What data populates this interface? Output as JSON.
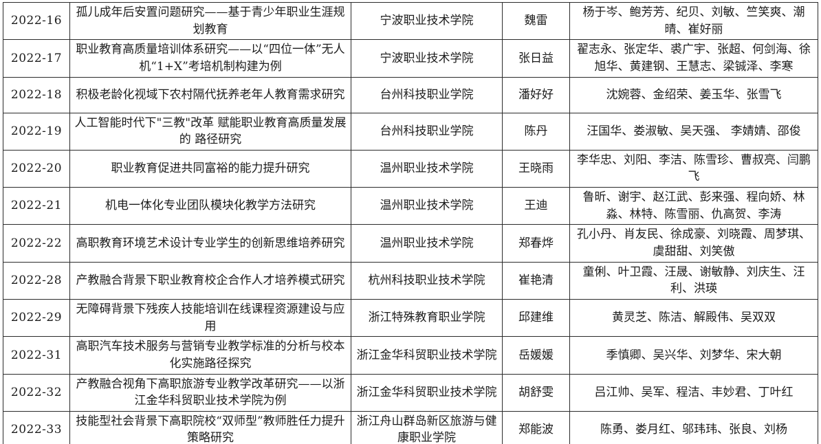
{
  "table": {
    "rows": [
      {
        "code": "2022-16",
        "title": "孤儿成年后安置问题研究——基于青少年职业生涯规划教育",
        "institution": "宁波职业技术学院",
        "leader": "魏雷",
        "members": "杨于岑、鲍芳芳、纪贝、刘敏、竺笑爽、潮晴、崔好丽"
      },
      {
        "code": "2022-17",
        "title": "职业教育高质量培训体系研究——以“四位一体”无人机“1+X”考培机制构建为例",
        "institution": "宁波职业技术学院",
        "leader": "张日益",
        "members": "翟志永、张定华、裘广宇、张超、何剑海、徐旭华、黄建钢、王慧志、梁铖泽、李寒"
      },
      {
        "code": "2022-18",
        "title": "积极老龄化视域下农村隔代抚养老年人教育需求研究",
        "institution": "台州科技职业学院",
        "leader": "潘好好",
        "members": "沈婉蓉、金绍荣、姜玉华、张雪飞"
      },
      {
        "code": "2022-19",
        "title": "人工智能时代下\"三教\"改革 赋能职业教育高质量发展的 路径研究",
        "institution": "台州科技职业学院",
        "leader": "陈丹",
        "members": "汪国华、娄淑敏、吴天强、 李婧婧、邵俊"
      },
      {
        "code": "2022-20",
        "title": "职业教育促进共同富裕的能力提升研究",
        "institution": "温州职业技术学院",
        "leader": "王晓雨",
        "members": "李华忠、刘阳、李洁、陈雪珍、曹叔亮、闫鹏飞"
      },
      {
        "code": "2022-21",
        "title": "机电一体化专业团队模块化教学方法研究",
        "institution": "温州职业技术学院",
        "leader": "王迪",
        "members": "鲁昕、谢宇、赵江武、彭来强、程向娇、林淼、林特、陈雪丽、仇高贺、李涛"
      },
      {
        "code": "2022-22",
        "title": "高职教育环境艺术设计专业学生的创新思维培养研究",
        "institution": "温州职业技术学院",
        "leader": "郑春烨",
        "members": "孔小丹、肖友民、徐成豪、刘晓霞、周梦琪、虞甜甜、刘笑傲"
      },
      {
        "code": "2022-28",
        "title": "产教融合背景下职业教育校企合作人才培养模式研究",
        "institution": "杭州科技职业技术学院",
        "leader": "崔艳清",
        "members": "童俐、叶卫霞、汪晟、谢敏静、刘庆生、汪利、洪瑛"
      },
      {
        "code": "2022-29",
        "title": "无障碍背景下残疾人技能培训在线课程资源建设与应用",
        "institution": "浙江特殊教育职业学院",
        "leader": "邱建维",
        "members": "黄灵芝、陈洁、解殿伟、吴双双"
      },
      {
        "code": "2022-31",
        "title": "高职汽车技术服务与营销专业教学标准的分析与校本化实施路径探究",
        "institution": "浙江金华科贸职业技术学院",
        "leader": "岳媛媛",
        "members": "季慎卿、吴兴华、刘梦华、宋大朝"
      },
      {
        "code": "2022-32",
        "title": "产教融合视角下高职旅游专业教学改革研究——以浙江金华科贸职业技术学院为例",
        "institution": "浙江金华科贸职业技术学院",
        "leader": "胡舒雯",
        "members": "吕江帅、吴军、程洁、丰妙君、丁叶红"
      },
      {
        "code": "2022-33",
        "title": "技能型社会背景下高职院校“双师型”教师胜任力提升策略研究",
        "institution": "浙江舟山群岛新区旅游与健康职业学院",
        "leader": "郑能波",
        "members": "陈勇、娄月红、邬玮玮、张良、刘杨"
      }
    ]
  }
}
